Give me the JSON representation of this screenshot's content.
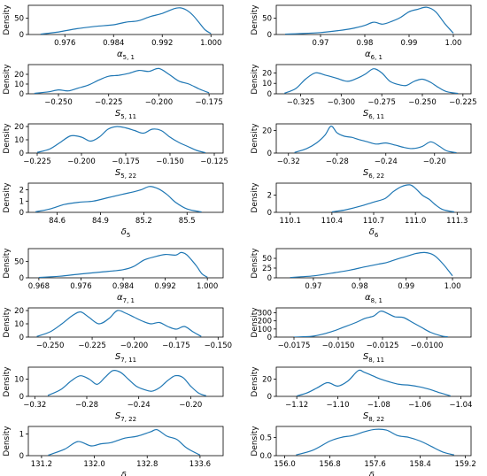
{
  "chart_data": [
    {
      "type": "line",
      "ylabel": "Density",
      "xlabel": "α5, 1",
      "xlim": [
        0.97,
        1.002
      ],
      "ylim": [
        0,
        90
      ],
      "xticks": [
        "0.976",
        "0.984",
        "0.992",
        "1.000"
      ],
      "xtick_values": [
        0.976,
        0.984,
        0.992,
        1.0
      ],
      "yticks": [
        "0",
        "50"
      ],
      "ytick_values": [
        0,
        50
      ],
      "series_color": "#1f77b4",
      "x": [
        0.972,
        0.975,
        0.978,
        0.981,
        0.984,
        0.986,
        0.988,
        0.99,
        0.992,
        0.994,
        0.995,
        0.996,
        0.997,
        0.998,
        0.999,
        1.0
      ],
      "y": [
        1,
        8,
        18,
        25,
        30,
        38,
        42,
        55,
        65,
        80,
        82,
        75,
        60,
        38,
        15,
        3
      ]
    },
    {
      "type": "line",
      "ylabel": "Density",
      "xlabel": "α6, 1",
      "xlim": [
        0.96,
        1.004
      ],
      "ylim": [
        0,
        90
      ],
      "xticks": [
        "0.97",
        "0.98",
        "0.99",
        "1.00"
      ],
      "xtick_values": [
        0.97,
        0.98,
        0.99,
        1.0
      ],
      "yticks": [
        "0",
        "50"
      ],
      "ytick_values": [
        0,
        50
      ],
      "series_color": "#1f77b4",
      "x": [
        0.962,
        0.966,
        0.97,
        0.974,
        0.977,
        0.98,
        0.982,
        0.984,
        0.986,
        0.988,
        0.99,
        0.992,
        0.994,
        0.996,
        0.998,
        1.0
      ],
      "y": [
        1,
        3,
        6,
        12,
        18,
        28,
        38,
        32,
        40,
        52,
        70,
        78,
        84,
        70,
        35,
        4
      ]
    },
    {
      "type": "line",
      "ylabel": "Density",
      "xlabel": "S5, 11",
      "xlim": [
        -0.265,
        -0.168
      ],
      "ylim": [
        0,
        30
      ],
      "xticks": [
        "−0.250",
        "−0.225",
        "−0.200",
        "−0.175"
      ],
      "xtick_values": [
        -0.25,
        -0.225,
        -0.2,
        -0.175
      ],
      "yticks": [
        "0",
        "10",
        "20"
      ],
      "ytick_values": [
        0,
        10,
        20
      ],
      "series_color": "#1f77b4",
      "x": [
        -0.262,
        -0.255,
        -0.25,
        -0.245,
        -0.24,
        -0.235,
        -0.23,
        -0.225,
        -0.22,
        -0.215,
        -0.21,
        -0.205,
        -0.2,
        -0.195,
        -0.19,
        -0.185,
        -0.18,
        -0.175
      ],
      "y": [
        0.5,
        2,
        4,
        3,
        6,
        9,
        14,
        18,
        19,
        21,
        24,
        23,
        26,
        20,
        13,
        10,
        5,
        1
      ]
    },
    {
      "type": "line",
      "ylabel": "Density",
      "xlabel": "S6, 11",
      "xlim": [
        -0.34,
        -0.22
      ],
      "ylim": [
        0,
        28
      ],
      "xticks": [
        "−0.325",
        "−0.300",
        "−0.275",
        "−0.250",
        "−0.225"
      ],
      "xtick_values": [
        -0.325,
        -0.3,
        -0.275,
        -0.25,
        -0.225
      ],
      "yticks": [
        "0",
        "10",
        "20"
      ],
      "ytick_values": [
        0,
        10,
        20
      ],
      "series_color": "#1f77b4",
      "x": [
        -0.335,
        -0.328,
        -0.322,
        -0.316,
        -0.31,
        -0.303,
        -0.296,
        -0.29,
        -0.285,
        -0.28,
        -0.275,
        -0.27,
        -0.265,
        -0.26,
        -0.255,
        -0.25,
        -0.245,
        -0.24,
        -0.235,
        -0.228
      ],
      "y": [
        0.5,
        5,
        14,
        20,
        18,
        15,
        12,
        15,
        19,
        24,
        20,
        12,
        9,
        8,
        12,
        14,
        11,
        6,
        2,
        0.3
      ]
    },
    {
      "type": "line",
      "ylabel": "Density",
      "xlabel": "S5, 22",
      "xlim": [
        -0.23,
        -0.12
      ],
      "ylim": [
        0,
        22
      ],
      "xticks": [
        "−0.225",
        "−0.200",
        "−0.175",
        "−0.150",
        "−0.125"
      ],
      "xtick_values": [
        -0.225,
        -0.2,
        -0.175,
        -0.15,
        -0.125
      ],
      "yticks": [
        "0",
        "10",
        "20"
      ],
      "ytick_values": [
        0,
        10,
        20
      ],
      "series_color": "#1f77b4",
      "x": [
        -0.225,
        -0.218,
        -0.212,
        -0.206,
        -0.2,
        -0.195,
        -0.19,
        -0.185,
        -0.18,
        -0.175,
        -0.17,
        -0.165,
        -0.16,
        -0.155,
        -0.15,
        -0.145,
        -0.14,
        -0.135,
        -0.13
      ],
      "y": [
        0.5,
        3,
        8,
        13,
        12,
        9,
        12,
        18,
        20,
        19,
        17,
        15,
        18,
        17,
        12,
        8,
        5,
        2,
        0.3
      ]
    },
    {
      "type": "line",
      "ylabel": "Density",
      "xlabel": "S6, 22",
      "xlim": [
        -0.33,
        -0.17
      ],
      "ylim": [
        0,
        26
      ],
      "xticks": [
        "−0.32",
        "−0.28",
        "−0.24",
        "−0.20"
      ],
      "xtick_values": [
        -0.32,
        -0.28,
        -0.24,
        -0.2
      ],
      "yticks": [
        "0",
        "20"
      ],
      "ytick_values": [
        0,
        20
      ],
      "series_color": "#1f77b4",
      "x": [
        -0.315,
        -0.305,
        -0.297,
        -0.29,
        -0.285,
        -0.28,
        -0.274,
        -0.268,
        -0.262,
        -0.255,
        -0.248,
        -0.24,
        -0.232,
        -0.225,
        -0.218,
        -0.21,
        -0.203,
        -0.196,
        -0.19,
        -0.182
      ],
      "y": [
        0.5,
        4,
        9,
        16,
        24,
        18,
        15,
        14,
        12,
        10,
        8,
        9,
        7,
        5,
        4,
        6,
        10,
        6,
        2,
        0.3
      ]
    },
    {
      "type": "line",
      "ylabel": "Density",
      "xlabel": "δ5",
      "xlim": [
        84.4,
        85.75
      ],
      "ylim": [
        0,
        2.6
      ],
      "xticks": [
        "84.6",
        "84.9",
        "85.2",
        "85.5"
      ],
      "xtick_values": [
        84.6,
        84.9,
        85.2,
        85.5
      ],
      "yticks": [
        "0",
        "1",
        "2"
      ],
      "ytick_values": [
        0,
        1,
        2
      ],
      "series_color": "#1f77b4",
      "x": [
        84.45,
        84.55,
        84.65,
        84.75,
        84.85,
        84.95,
        85.05,
        85.12,
        85.18,
        85.24,
        85.3,
        85.36,
        85.42,
        85.5,
        85.6
      ],
      "y": [
        0.05,
        0.3,
        0.7,
        0.9,
        1.0,
        1.3,
        1.6,
        1.8,
        2.0,
        2.3,
        2.1,
        1.6,
        0.9,
        0.3,
        0.03
      ]
    },
    {
      "type": "line",
      "ylabel": "Density",
      "xlabel": "δ6",
      "xlim": [
        110.0,
        111.4
      ],
      "ylim": [
        0,
        3.4
      ],
      "xticks": [
        "110.1",
        "110.4",
        "110.7",
        "111.0",
        "111.3"
      ],
      "xtick_values": [
        110.1,
        110.4,
        110.7,
        111.0,
        111.3
      ],
      "yticks": [
        "0",
        "2"
      ],
      "ytick_values": [
        0,
        2
      ],
      "series_color": "#1f77b4",
      "x": [
        110.4,
        110.5,
        110.6,
        110.7,
        110.78,
        110.84,
        110.9,
        110.96,
        111.0,
        111.05,
        111.1,
        111.15,
        111.2,
        111.28
      ],
      "y": [
        0.05,
        0.3,
        0.7,
        1.2,
        1.6,
        2.4,
        3.0,
        3.2,
        2.8,
        2.0,
        1.5,
        0.8,
        0.3,
        0.05
      ]
    },
    {
      "type": "line",
      "ylabel": "Density",
      "xlabel": "α7, 1",
      "xlim": [
        0.966,
        1.003
      ],
      "ylim": [
        0,
        90
      ],
      "xticks": [
        "0.968",
        "0.976",
        "0.984",
        "0.992",
        "1.000"
      ],
      "xtick_values": [
        0.968,
        0.976,
        0.984,
        0.992,
        1.0
      ],
      "yticks": [
        "0",
        "50"
      ],
      "ytick_values": [
        0,
        50
      ],
      "series_color": "#1f77b4",
      "x": [
        0.968,
        0.972,
        0.976,
        0.98,
        0.984,
        0.986,
        0.988,
        0.99,
        0.992,
        0.994,
        0.995,
        0.996,
        0.997,
        0.998,
        0.999,
        1.0
      ],
      "y": [
        1,
        5,
        12,
        18,
        25,
        35,
        55,
        65,
        72,
        70,
        78,
        72,
        55,
        35,
        12,
        2
      ]
    },
    {
      "type": "line",
      "ylabel": "Density",
      "xlabel": "α8, 1",
      "xlim": [
        0.962,
        1.004
      ],
      "ylim": [
        0,
        75
      ],
      "xticks": [
        "0.97",
        "0.98",
        "0.99",
        "1.00"
      ],
      "xtick_values": [
        0.97,
        0.98,
        0.99,
        1.0
      ],
      "yticks": [
        "0",
        "25",
        "50"
      ],
      "ytick_values": [
        0,
        25,
        50
      ],
      "series_color": "#1f77b4",
      "x": [
        0.965,
        0.97,
        0.974,
        0.978,
        0.981,
        0.984,
        0.986,
        0.988,
        0.99,
        0.992,
        0.994,
        0.996,
        0.998,
        1.0
      ],
      "y": [
        1,
        5,
        12,
        20,
        28,
        35,
        40,
        48,
        55,
        62,
        65,
        58,
        35,
        5
      ]
    },
    {
      "type": "line",
      "ylabel": "Density",
      "xlabel": "S7, 11",
      "xlim": [
        -0.263,
        -0.147
      ],
      "ylim": [
        0,
        22
      ],
      "xticks": [
        "−0.250",
        "−0.225",
        "−0.200",
        "−0.175",
        "−0.150"
      ],
      "xtick_values": [
        -0.25,
        -0.225,
        -0.2,
        -0.175,
        -0.15
      ],
      "yticks": [
        "0",
        "10",
        "20"
      ],
      "ytick_values": [
        0,
        10,
        20
      ],
      "series_color": "#1f77b4",
      "x": [
        -0.258,
        -0.25,
        -0.243,
        -0.237,
        -0.232,
        -0.227,
        -0.221,
        -0.215,
        -0.21,
        -0.205,
        -0.2,
        -0.195,
        -0.19,
        -0.185,
        -0.18,
        -0.175,
        -0.17,
        -0.165,
        -0.16
      ],
      "y": [
        0.5,
        4,
        10,
        16,
        19,
        15,
        10,
        14,
        20,
        18,
        15,
        12,
        10,
        11,
        8,
        6,
        8,
        4,
        0.5
      ]
    },
    {
      "type": "line",
      "ylabel": "Density",
      "xlabel": "S8, 11",
      "xlim": [
        -0.0185,
        -0.0075
      ],
      "ylim": [
        0,
        360
      ],
      "xticks": [
        "−0.0175",
        "−0.0150",
        "−0.0125",
        "−0.0100"
      ],
      "xtick_values": [
        -0.0175,
        -0.015,
        -0.0125,
        -0.01
      ],
      "yticks": [
        "0",
        "100",
        "200",
        "300"
      ],
      "ytick_values": [
        0,
        100,
        200,
        300
      ],
      "series_color": "#1f77b4",
      "x": [
        -0.0175,
        -0.0165,
        -0.0158,
        -0.0152,
        -0.0146,
        -0.014,
        -0.0135,
        -0.013,
        -0.0126,
        -0.0122,
        -0.0118,
        -0.0113,
        -0.0108,
        -0.0103,
        -0.0098,
        -0.0092,
        -0.0088
      ],
      "y": [
        0,
        10,
        40,
        80,
        130,
        180,
        230,
        260,
        320,
        290,
        250,
        240,
        180,
        120,
        60,
        15,
        2
      ]
    },
    {
      "type": "line",
      "ylabel": "Density",
      "xlabel": "S7, 22",
      "xlim": [
        -0.325,
        -0.175
      ],
      "ylim": [
        0,
        17
      ],
      "xticks": [
        "−0.32",
        "−0.28",
        "−0.24",
        "−0.20"
      ],
      "xtick_values": [
        -0.32,
        -0.28,
        -0.24,
        -0.2
      ],
      "yticks": [
        "0",
        "10"
      ],
      "ytick_values": [
        0,
        10
      ],
      "series_color": "#1f77b4",
      "x": [
        -0.31,
        -0.3,
        -0.292,
        -0.285,
        -0.278,
        -0.272,
        -0.266,
        -0.26,
        -0.254,
        -0.248,
        -0.242,
        -0.236,
        -0.23,
        -0.224,
        -0.218,
        -0.212,
        -0.206,
        -0.2,
        -0.194,
        -0.188
      ],
      "y": [
        0.5,
        4,
        9,
        12,
        10,
        7,
        11,
        15,
        14,
        10,
        6,
        4,
        3,
        5,
        9,
        12,
        11,
        6,
        2,
        0.3
      ]
    },
    {
      "type": "line",
      "ylabel": "Density",
      "xlabel": "S8, 22",
      "xlim": [
        -1.13,
        -1.035
      ],
      "ylim": [
        0,
        34
      ],
      "xticks": [
        "−1.12",
        "−1.10",
        "−1.08",
        "−1.06",
        "−1.04"
      ],
      "xtick_values": [
        -1.12,
        -1.1,
        -1.08,
        -1.06,
        -1.04
      ],
      "yticks": [
        "0",
        "20"
      ],
      "ytick_values": [
        0,
        20
      ],
      "series_color": "#1f77b4",
      "x": [
        -1.12,
        -1.115,
        -1.11,
        -1.105,
        -1.1,
        -1.095,
        -1.09,
        -1.087,
        -1.083,
        -1.079,
        -1.075,
        -1.07,
        -1.065,
        -1.06,
        -1.055,
        -1.05,
        -1.045
      ],
      "y": [
        0.5,
        4,
        10,
        16,
        12,
        18,
        30,
        28,
        24,
        20,
        17,
        14,
        13,
        11,
        8,
        4,
        0.5
      ]
    },
    {
      "type": "line",
      "ylabel": "Density",
      "xlabel": "δ7",
      "xlim": [
        131.0,
        133.95
      ],
      "ylim": [
        0,
        1.35
      ],
      "xticks": [
        "131.2",
        "132.0",
        "132.8",
        "133.6"
      ],
      "xtick_values": [
        131.2,
        132.0,
        132.8,
        133.6
      ],
      "yticks": [
        "0",
        "1"
      ],
      "ytick_values": [
        0,
        1
      ],
      "series_color": "#1f77b4",
      "x": [
        131.3,
        131.55,
        131.75,
        131.95,
        132.1,
        132.25,
        132.45,
        132.65,
        132.85,
        132.95,
        133.1,
        133.25,
        133.4,
        133.6
      ],
      "y": [
        0.02,
        0.3,
        0.65,
        0.45,
        0.55,
        0.6,
        0.8,
        0.9,
        1.1,
        1.2,
        0.9,
        0.75,
        0.35,
        0.03
      ]
    },
    {
      "type": "line",
      "ylabel": "Density",
      "xlabel": "δ8",
      "xlim": [
        155.85,
        159.3
      ],
      "ylim": [
        0,
        0.8
      ],
      "xticks": [
        "156.0",
        "156.8",
        "157.6",
        "158.4",
        "159.2"
      ],
      "xtick_values": [
        156.0,
        156.8,
        157.6,
        158.4,
        159.2
      ],
      "yticks": [
        "0.0",
        "0.5"
      ],
      "ytick_values": [
        0,
        0.5
      ],
      "series_color": "#1f77b4",
      "x": [
        156.2,
        156.5,
        156.8,
        157.0,
        157.2,
        157.4,
        157.6,
        157.8,
        158.0,
        158.2,
        158.4,
        158.6,
        158.8,
        159.0
      ],
      "y": [
        0.02,
        0.15,
        0.4,
        0.5,
        0.55,
        0.65,
        0.72,
        0.7,
        0.55,
        0.5,
        0.4,
        0.25,
        0.1,
        0.02
      ]
    }
  ]
}
